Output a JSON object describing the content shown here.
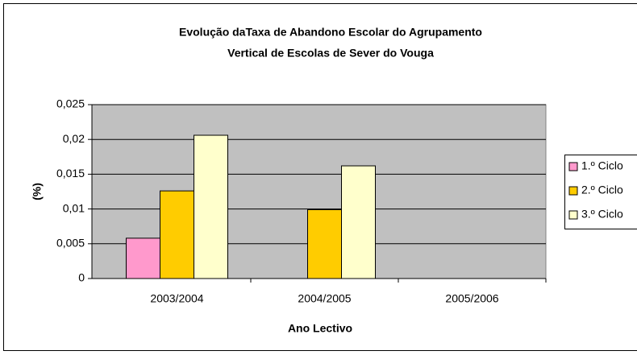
{
  "chart_data": {
    "type": "bar",
    "title": [
      "Evolução daTaxa de Abandono Escolar do Agrupamento",
      "Vertical  de Escolas de Sever do Vouga"
    ],
    "x_label": "Ano Lectivo",
    "y_label": "(%)",
    "categories": [
      "2003/2004",
      "2004/2005",
      "2005/2006"
    ],
    "series": [
      {
        "name": "1.º Ciclo",
        "color": "#ff99cc",
        "values": [
          0.0058,
          null,
          null
        ]
      },
      {
        "name": "2.º Ciclo",
        "color": "#ffcc00",
        "values": [
          0.0126,
          0.0099,
          null
        ]
      },
      {
        "name": "3.º Ciclo",
        "color": "#ffffcc",
        "values": [
          0.0206,
          0.0162,
          null
        ]
      }
    ],
    "ylim": [
      0,
      0.025
    ],
    "yticks": [
      0,
      {
        "value": 0.005,
        "label": "0,005"
      },
      {
        "value": 0.01,
        "label": "0,01"
      },
      {
        "value": 0.015,
        "label": "0,015"
      },
      {
        "value": 0.02,
        "label": "0,02"
      },
      {
        "value": 0.025,
        "label": "0,025"
      }
    ],
    "grid": true,
    "legend": "right",
    "plot_background": "#c0c0c0"
  }
}
